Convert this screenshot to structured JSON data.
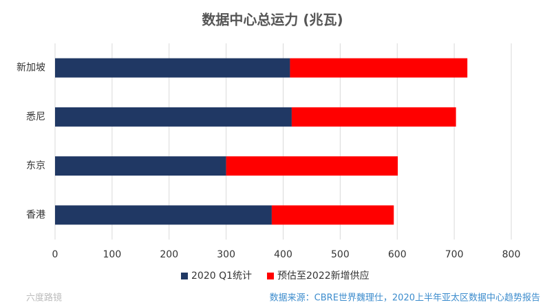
{
  "chart_data": {
    "type": "bar",
    "orientation": "horizontal",
    "stacked": true,
    "title": "数据中心总运力 (兆瓦)",
    "categories": [
      "新加坡",
      "悉尼",
      "东京",
      "香港"
    ],
    "series": [
      {
        "name": "2020 Q1统计",
        "color": "#203864",
        "values": [
          412,
          415,
          300,
          380
        ]
      },
      {
        "name": "预估至2022新增供应",
        "color": "#ff0000",
        "values": [
          311,
          288,
          301,
          214
        ]
      }
    ],
    "xlim": [
      0,
      800
    ],
    "xticks": [
      0,
      100,
      200,
      300,
      400,
      500,
      600,
      700,
      800
    ],
    "grid": true,
    "legend": "bottom",
    "source": "数据来源：CBRE世界魏理仕，2020上半年亚太区数据中心趋势报告",
    "watermark": "六度路镜"
  }
}
